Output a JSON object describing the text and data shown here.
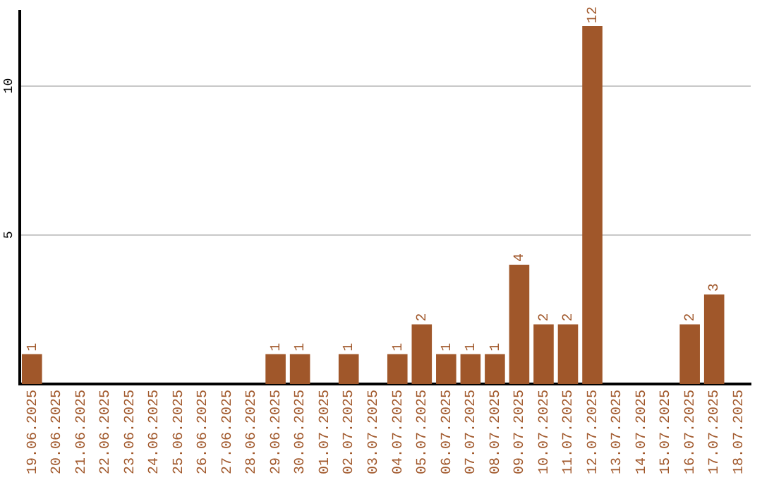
{
  "chart_data": {
    "type": "bar",
    "categories": [
      "19.06.2025",
      "20.06.2025",
      "21.06.2025",
      "22.06.2025",
      "23.06.2025",
      "24.06.2025",
      "25.06.2025",
      "26.06.2025",
      "27.06.2025",
      "28.06.2025",
      "29.06.2025",
      "30.06.2025",
      "01.07.2025",
      "02.07.2025",
      "03.07.2025",
      "04.07.2025",
      "05.07.2025",
      "06.07.2025",
      "07.07.2025",
      "08.07.2025",
      "09.07.2025",
      "10.07.2025",
      "11.07.2025",
      "12.07.2025",
      "13.07.2025",
      "14.07.2025",
      "15.07.2025",
      "16.07.2025",
      "17.07.2025",
      "18.07.2025"
    ],
    "values": [
      1,
      0,
      0,
      0,
      0,
      0,
      0,
      0,
      0,
      0,
      1,
      1,
      0,
      1,
      0,
      1,
      2,
      1,
      1,
      1,
      4,
      2,
      2,
      12,
      0,
      0,
      0,
      2,
      3,
      0
    ],
    "value_labels": [
      "1",
      null,
      null,
      null,
      null,
      null,
      null,
      null,
      null,
      null,
      "1",
      "1",
      null,
      "1",
      null,
      "1",
      "2",
      "1",
      "1",
      "1",
      "4",
      "2",
      "2",
      "12",
      null,
      null,
      null,
      "2",
      "3",
      null
    ],
    "color": "#a0572a",
    "ylim": [
      0,
      12.5
    ],
    "yticks": [
      5,
      10
    ],
    "grid": "y"
  }
}
